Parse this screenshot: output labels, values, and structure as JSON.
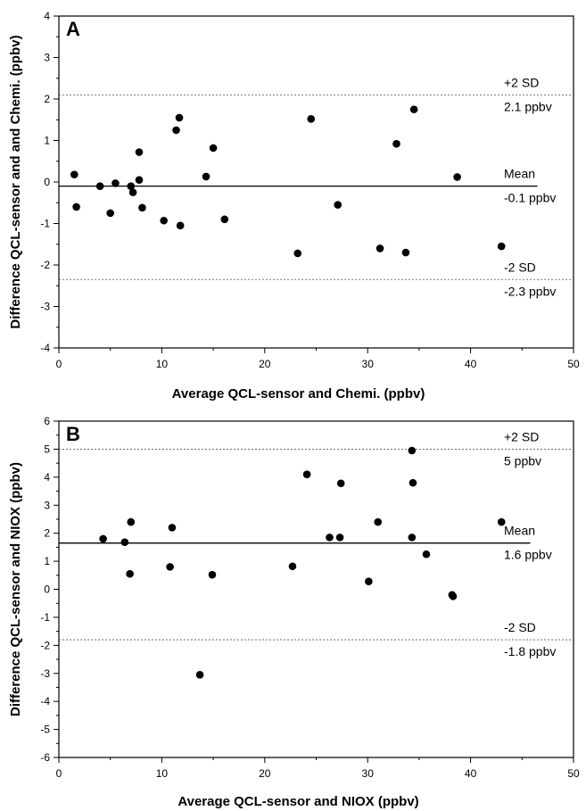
{
  "chart_data": [
    {
      "type": "scatter",
      "panel_label": "A",
      "xlabel": "Average QCL-sensor and Chemi. (ppbv)",
      "ylabel": "Difference QCL-sensor and and Chemi. (ppbv)",
      "xlim": [
        0,
        50
      ],
      "ylim": [
        -4,
        4
      ],
      "xticks": [
        "0",
        "10",
        "20",
        "30",
        "40",
        "50"
      ],
      "yticks": [
        "-4",
        "-3",
        "-2",
        "-1",
        "0",
        "1",
        "2",
        "3",
        "4"
      ],
      "grid": false,
      "points": [
        {
          "x": 1.5,
          "y": 0.18
        },
        {
          "x": 1.7,
          "y": -0.6
        },
        {
          "x": 4.0,
          "y": -0.1
        },
        {
          "x": 5.0,
          "y": -0.75
        },
        {
          "x": 5.5,
          "y": -0.03
        },
        {
          "x": 7.0,
          "y": -0.1
        },
        {
          "x": 7.2,
          "y": -0.25
        },
        {
          "x": 7.8,
          "y": 0.72
        },
        {
          "x": 7.8,
          "y": 0.05
        },
        {
          "x": 8.1,
          "y": -0.62
        },
        {
          "x": 10.2,
          "y": -0.93
        },
        {
          "x": 11.4,
          "y": 1.25
        },
        {
          "x": 11.7,
          "y": 1.55
        },
        {
          "x": 11.8,
          "y": -1.05
        },
        {
          "x": 14.3,
          "y": 0.13
        },
        {
          "x": 15.0,
          "y": 0.82
        },
        {
          "x": 16.1,
          "y": -0.9
        },
        {
          "x": 23.2,
          "y": -1.72
        },
        {
          "x": 24.5,
          "y": 1.52
        },
        {
          "x": 27.1,
          "y": -0.55
        },
        {
          "x": 31.2,
          "y": -1.6
        },
        {
          "x": 32.8,
          "y": 0.92
        },
        {
          "x": 33.7,
          "y": -1.7
        },
        {
          "x": 34.5,
          "y": 1.75
        },
        {
          "x": 38.7,
          "y": 0.12
        },
        {
          "x": 43.0,
          "y": -1.55
        }
      ],
      "reference_lines": [
        {
          "style": "dotted",
          "y": 2.1,
          "name": "+2 SD",
          "value_text": "2.1 ppbv",
          "x_end": 50
        },
        {
          "style": "solid",
          "y": -0.1,
          "name": "Mean",
          "value_text": "-0.1 ppbv",
          "x_end": 46.5
        },
        {
          "style": "dotted",
          "y": -2.35,
          "name": "-2 SD",
          "value_text": "-2.3 ppbv",
          "x_end": 50
        }
      ]
    },
    {
      "type": "scatter",
      "panel_label": "B",
      "xlabel": "Average QCL-sensor and NIOX (ppbv)",
      "ylabel": "Difference QCL-sensor and NIOX (ppbv)",
      "xlim": [
        0,
        50
      ],
      "ylim": [
        -6,
        6
      ],
      "xticks": [
        "0",
        "10",
        "20",
        "30",
        "40",
        "50"
      ],
      "yticks": [
        "-6",
        "-5",
        "-4",
        "-3",
        "-2",
        "-1",
        "0",
        "1",
        "2",
        "3",
        "4",
        "5",
        "6"
      ],
      "grid": false,
      "points": [
        {
          "x": 4.3,
          "y": 1.8
        },
        {
          "x": 6.4,
          "y": 1.68
        },
        {
          "x": 6.9,
          "y": 0.55
        },
        {
          "x": 7.0,
          "y": 2.4
        },
        {
          "x": 10.8,
          "y": 0.8
        },
        {
          "x": 11.0,
          "y": 2.2
        },
        {
          "x": 13.7,
          "y": -3.05
        },
        {
          "x": 14.9,
          "y": 0.52
        },
        {
          "x": 22.7,
          "y": 0.82
        },
        {
          "x": 24.1,
          "y": 4.1
        },
        {
          "x": 26.3,
          "y": 1.85
        },
        {
          "x": 27.3,
          "y": 1.85
        },
        {
          "x": 27.4,
          "y": 3.78
        },
        {
          "x": 30.1,
          "y": 0.28
        },
        {
          "x": 31.0,
          "y": 2.4
        },
        {
          "x": 34.3,
          "y": 4.95
        },
        {
          "x": 34.3,
          "y": 1.85
        },
        {
          "x": 34.4,
          "y": 3.8
        },
        {
          "x": 35.7,
          "y": 1.25
        },
        {
          "x": 38.2,
          "y": -0.2
        },
        {
          "x": 38.3,
          "y": -0.25
        },
        {
          "x": 43.0,
          "y": 2.4
        }
      ],
      "reference_lines": [
        {
          "style": "dotted",
          "y": 5.0,
          "name": "+2 SD",
          "value_text": "5 ppbv",
          "x_end": 50
        },
        {
          "style": "solid",
          "y": 1.65,
          "name": "Mean",
          "value_text": "1.6 ppbv",
          "x_end": 45.8
        },
        {
          "style": "dotted",
          "y": -1.8,
          "name": "-2 SD",
          "value_text": "-1.8 ppbv",
          "x_end": 50
        }
      ]
    }
  ]
}
